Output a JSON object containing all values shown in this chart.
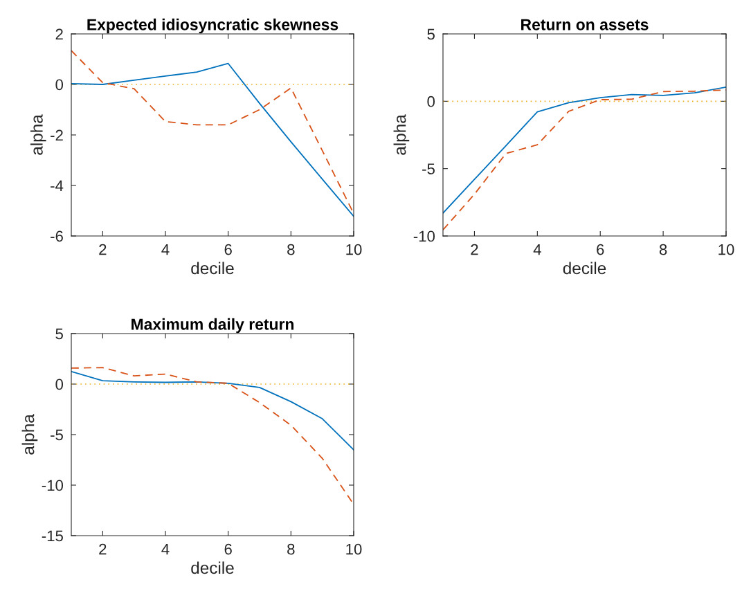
{
  "chart_data": [
    {
      "type": "line",
      "title": "Expected idiosyncratic skewness",
      "xlabel": "decile",
      "ylabel": "alpha",
      "x": [
        1,
        2,
        3,
        4,
        5,
        6,
        7,
        8,
        9,
        10
      ],
      "xlim": [
        1,
        10
      ],
      "xticks": [
        2,
        4,
        6,
        8,
        10
      ],
      "ylim": [
        -6,
        2
      ],
      "yticks": [
        {
          "value": -6,
          "label": "-6"
        },
        {
          "value": -4,
          "label": "-4"
        },
        {
          "value": -2,
          "label": "-2"
        },
        0,
        2
      ],
      "grid": false,
      "ref_lines": [
        {
          "axis": "y",
          "value": 0,
          "color": "#edb120",
          "line_style": "dotted"
        }
      ],
      "series": [
        {
          "color": "#0072bd",
          "line_style": "solid",
          "values": [
            0.03,
            0.0,
            0.17,
            0.33,
            0.49,
            0.83,
            -0.75,
            -2.27,
            -3.75,
            -5.22
          ]
        },
        {
          "color": "#d95319",
          "line_style": "dashed",
          "values": [
            1.34,
            0.07,
            -0.17,
            -1.47,
            -1.6,
            -1.6,
            -1.0,
            -0.14,
            -2.62,
            -5.11
          ]
        }
      ]
    },
    {
      "type": "line",
      "title": "Return on assets",
      "xlabel": "decile",
      "ylabel": "alpha",
      "x": [
        1,
        2,
        3,
        4,
        5,
        6,
        7,
        8,
        9,
        10
      ],
      "xlim": [
        1,
        10
      ],
      "xticks": [
        2,
        4,
        6,
        8,
        10
      ],
      "ylim": [
        -10,
        5
      ],
      "yticks": [
        {
          "value": -10,
          "label": "-10"
        },
        {
          "value": -5,
          "label": "-5"
        },
        0,
        5
      ],
      "grid": false,
      "ref_lines": [
        {
          "axis": "y",
          "value": 0,
          "color": "#edb120",
          "line_style": "dotted"
        }
      ],
      "series": [
        {
          "color": "#0072bd",
          "line_style": "solid",
          "values": [
            -8.3,
            -5.8,
            -3.3,
            -0.78,
            -0.1,
            0.27,
            0.5,
            0.43,
            0.63,
            1.05
          ]
        },
        {
          "color": "#d95319",
          "line_style": "dashed",
          "values": [
            -9.55,
            -6.9,
            -3.88,
            -3.23,
            -0.74,
            0.12,
            0.15,
            0.72,
            0.75,
            0.84
          ]
        }
      ]
    },
    {
      "type": "line",
      "title": "Maximum daily return",
      "xlabel": "decile",
      "ylabel": "alpha",
      "x": [
        1,
        2,
        3,
        4,
        5,
        6,
        7,
        8,
        9,
        10
      ],
      "xlim": [
        1,
        10
      ],
      "xticks": [
        2,
        4,
        6,
        8,
        10
      ],
      "ylim": [
        -15,
        5
      ],
      "yticks": [
        {
          "value": -15,
          "label": "-15"
        },
        {
          "value": -10,
          "label": "-10"
        },
        {
          "value": -5,
          "label": "-5"
        },
        0,
        5
      ],
      "grid": false,
      "ref_lines": [
        {
          "axis": "y",
          "value": 0,
          "color": "#edb120",
          "line_style": "dotted"
        }
      ],
      "series": [
        {
          "color": "#0072bd",
          "line_style": "solid",
          "values": [
            1.24,
            0.33,
            0.22,
            0.17,
            0.22,
            0.08,
            -0.33,
            -1.74,
            -3.43,
            -6.5
          ]
        },
        {
          "color": "#d95319",
          "line_style": "dashed",
          "values": [
            1.58,
            1.63,
            0.81,
            0.99,
            0.22,
            0.08,
            -1.83,
            -4.07,
            -7.35,
            -11.9
          ]
        }
      ]
    }
  ]
}
